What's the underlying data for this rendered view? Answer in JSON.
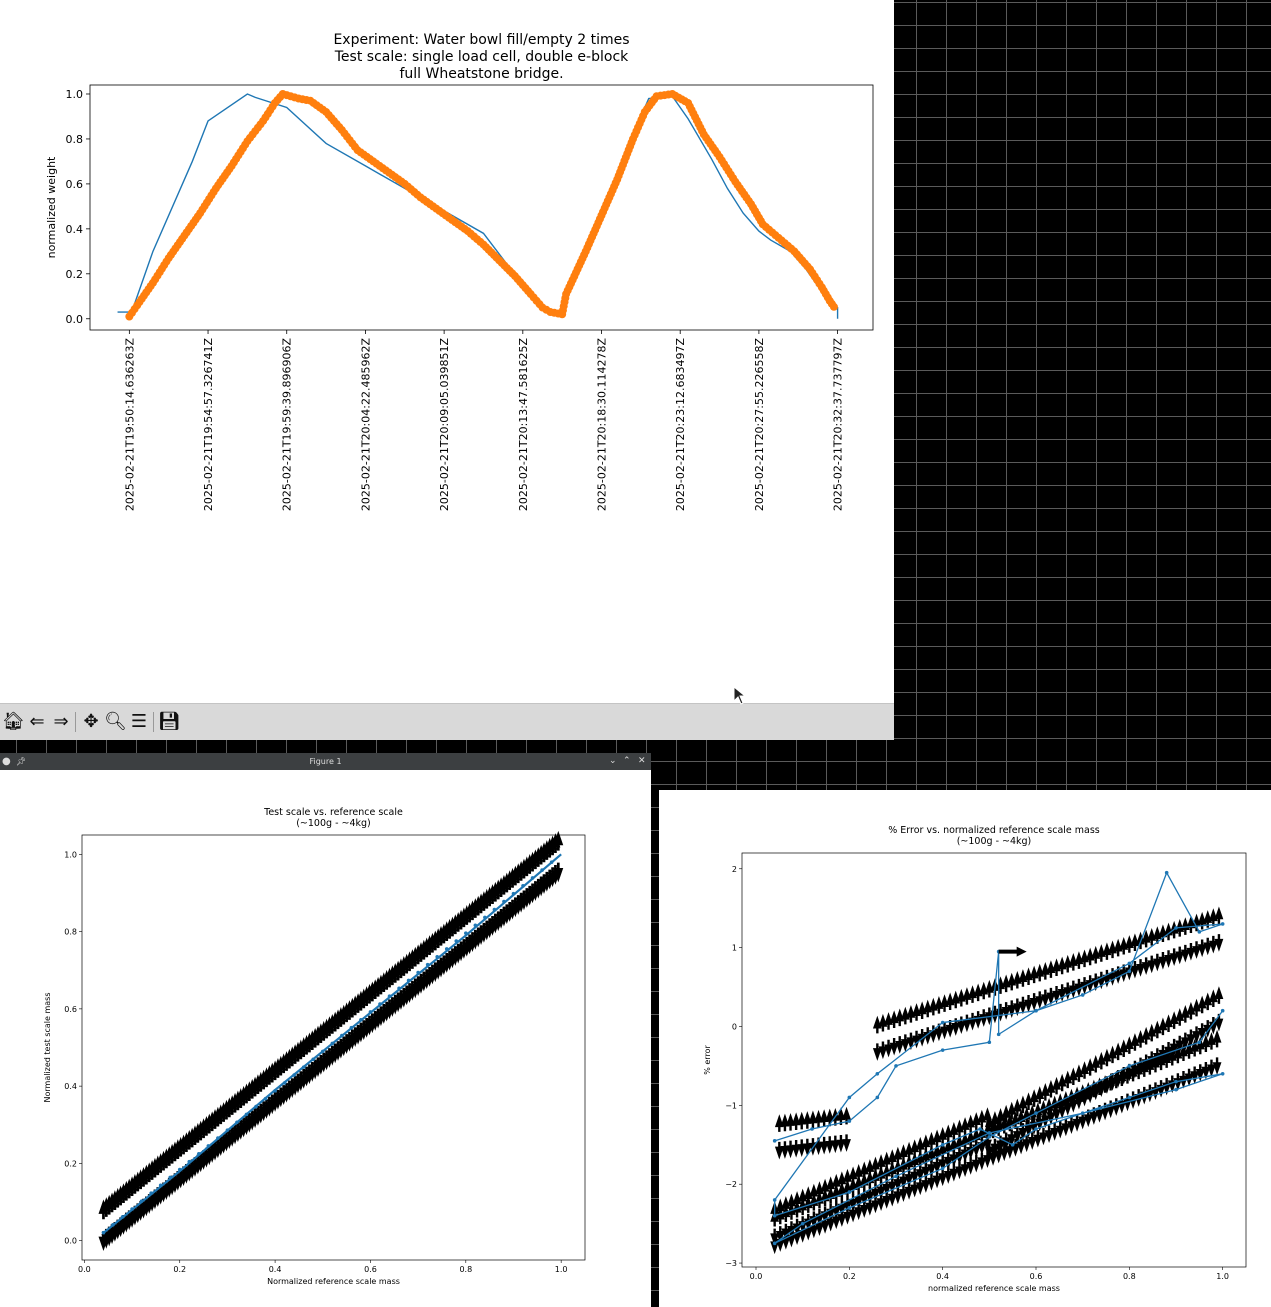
{
  "colors": {
    "accent": "#1f77b4",
    "orange": "#ff7f0e",
    "desktop": "#000000"
  },
  "window_top": {
    "toolbar": {
      "icons": [
        "home-icon",
        "back-arrow-icon",
        "forward-arrow-icon",
        "pan-icon",
        "zoom-icon",
        "configure-subplots-icon",
        "save-icon"
      ]
    }
  },
  "window_left": {
    "title": "Figure 1",
    "controls": {
      "minimize": "⌄",
      "maximize": "⌃",
      "close": "✕"
    }
  },
  "chart_data": [
    {
      "type": "line",
      "title": "Experiment: Water bowl fill/empty 2 times\nTest scale: single load cell, double e-block\nfull Wheatstone bridge.",
      "title_lines": [
        "Experiment: Water bowl fill/empty 2 times",
        "Test scale: single load cell, double e-block",
        "full Wheatstone bridge."
      ],
      "xlabel": "",
      "ylabel": "normalized weight",
      "ylim": [
        -0.05,
        1.04
      ],
      "yticks": [
        "0.0",
        "0.2",
        "0.4",
        "0.6",
        "0.8",
        "1.0"
      ],
      "x_tick_labels": [
        "2025-02-21T19:50:14.636263Z",
        "2025-02-21T19:54:57.326741Z",
        "2025-02-21T19:59:39.896906Z",
        "2025-02-21T20:04:22.485962Z",
        "2025-02-21T20:09:05.039851Z",
        "2025-02-21T20:13:47.581625Z",
        "2025-02-21T20:18:30.114278Z",
        "2025-02-21T20:23:12.683497Z",
        "2025-02-21T20:27:55.226558Z",
        "2025-02-21T20:32:37.737797Z"
      ],
      "series": [
        {
          "color": "#1f77b4",
          "style": "line",
          "points": [
            [
              -0.15,
              0.03
            ],
            [
              0.0,
              0.03
            ],
            [
              0.05,
              0.05
            ],
            [
              0.3,
              0.3
            ],
            [
              0.8,
              0.7
            ],
            [
              1.0,
              0.88
            ],
            [
              1.5,
              1.0
            ],
            [
              1.6,
              0.985
            ],
            [
              2.0,
              0.94
            ],
            [
              2.5,
              0.78
            ],
            [
              3.0,
              0.68
            ],
            [
              3.5,
              0.58
            ],
            [
              4.0,
              0.48
            ],
            [
              4.5,
              0.38
            ],
            [
              5.0,
              0.15
            ],
            [
              5.2,
              0.06
            ],
            [
              5.35,
              0.04
            ],
            [
              5.5,
              0.03
            ],
            [
              5.55,
              0.11
            ],
            [
              5.8,
              0.3
            ],
            [
              6.2,
              0.65
            ],
            [
              6.5,
              0.9
            ],
            [
              6.6,
              0.98
            ],
            [
              6.9,
              0.99
            ],
            [
              7.1,
              0.89
            ],
            [
              7.4,
              0.71
            ],
            [
              7.6,
              0.58
            ],
            [
              7.8,
              0.47
            ],
            [
              8.0,
              0.39
            ],
            [
              8.15,
              0.35
            ],
            [
              8.4,
              0.3
            ],
            [
              8.6,
              0.22
            ],
            [
              8.8,
              0.12
            ],
            [
              8.95,
              0.06
            ],
            [
              9.0,
              0.05
            ],
            [
              9.0,
              0.0
            ]
          ]
        },
        {
          "color": "#ff7f0e",
          "style": "markers",
          "points": [
            [
              0.0,
              0.01
            ],
            [
              0.1,
              0.06
            ],
            [
              0.3,
              0.16
            ],
            [
              0.5,
              0.27
            ],
            [
              0.7,
              0.37
            ],
            [
              0.9,
              0.47
            ],
            [
              1.1,
              0.58
            ],
            [
              1.3,
              0.68
            ],
            [
              1.5,
              0.79
            ],
            [
              1.7,
              0.88
            ],
            [
              1.85,
              0.96
            ],
            [
              1.95,
              1.0
            ],
            [
              2.15,
              0.98
            ],
            [
              2.3,
              0.97
            ],
            [
              2.5,
              0.92
            ],
            [
              2.7,
              0.84
            ],
            [
              2.9,
              0.75
            ],
            [
              3.1,
              0.7
            ],
            [
              3.3,
              0.65
            ],
            [
              3.5,
              0.6
            ],
            [
              3.7,
              0.54
            ],
            [
              3.9,
              0.49
            ],
            [
              4.1,
              0.44
            ],
            [
              4.3,
              0.39
            ],
            [
              4.5,
              0.33
            ],
            [
              4.7,
              0.26
            ],
            [
              4.9,
              0.19
            ],
            [
              5.1,
              0.11
            ],
            [
              5.25,
              0.05
            ],
            [
              5.35,
              0.03
            ],
            [
              5.5,
              0.02
            ],
            [
              5.55,
              0.11
            ],
            [
              5.8,
              0.3
            ],
            [
              6.0,
              0.46
            ],
            [
              6.2,
              0.62
            ],
            [
              6.4,
              0.8
            ],
            [
              6.55,
              0.92
            ],
            [
              6.7,
              0.99
            ],
            [
              6.9,
              1.0
            ],
            [
              7.1,
              0.96
            ],
            [
              7.3,
              0.82
            ],
            [
              7.5,
              0.72
            ],
            [
              7.7,
              0.61
            ],
            [
              7.9,
              0.51
            ],
            [
              8.05,
              0.42
            ],
            [
              8.25,
              0.36
            ],
            [
              8.45,
              0.3
            ],
            [
              8.65,
              0.22
            ],
            [
              8.8,
              0.14
            ],
            [
              8.9,
              0.08
            ],
            [
              8.98,
              0.04
            ]
          ]
        }
      ]
    },
    {
      "type": "line",
      "title": "Test scale vs. reference scale\n(~100g - ~4kg)",
      "title_lines": [
        "Test scale vs. reference scale",
        "(~100g - ~4kg)"
      ],
      "xlabel": "Normalized reference scale mass",
      "ylabel": "Normalized test scale mass",
      "xlim": [
        -0.005,
        1.05
      ],
      "ylim": [
        -0.05,
        1.05
      ],
      "xticks": [
        "0.0",
        "0.2",
        "0.4",
        "0.6",
        "0.8",
        "1.0"
      ],
      "yticks": [
        "0.0",
        "0.2",
        "0.4",
        "0.6",
        "0.8",
        "1.0"
      ],
      "series": [
        {
          "color": "#1f77b4",
          "style": "line+markers",
          "points": [
            [
              0.04,
              0.02
            ],
            [
              0.2,
              0.18
            ],
            [
              0.4,
              0.39
            ],
            [
              0.6,
              0.59
            ],
            [
              0.8,
              0.79
            ],
            [
              1.0,
              1.0
            ]
          ]
        }
      ]
    },
    {
      "type": "line",
      "title": "% Error vs. normalized reference scale mass\n(~100g - ~4kg)",
      "title_lines": [
        "% Error vs. normalized reference scale mass",
        "(~100g - ~4kg)"
      ],
      "xlabel": "normalized reference scale mass",
      "ylabel": "% error",
      "xlim": [
        -0.03,
        1.05
      ],
      "ylim": [
        -3.05,
        2.2
      ],
      "xticks": [
        "0.0",
        "0.2",
        "0.4",
        "0.6",
        "0.8",
        "1.0"
      ],
      "yticks": [
        "−3",
        "−2",
        "−1",
        "0",
        "1",
        "2"
      ],
      "series": [
        {
          "color": "#1f77b4",
          "style": "line+markers",
          "points": [
            [
              0.04,
              -1.45
            ],
            [
              0.12,
              -1.3
            ],
            [
              0.2,
              -1.2
            ],
            [
              0.26,
              -0.9
            ],
            [
              0.3,
              -0.5
            ],
            [
              0.4,
              -0.3
            ],
            [
              0.5,
              -0.2
            ],
            [
              0.52,
              0.95
            ],
            [
              0.52,
              -0.1
            ],
            [
              0.6,
              0.2
            ],
            [
              0.7,
              0.4
            ],
            [
              0.8,
              0.7
            ],
            [
              0.88,
              1.95
            ],
            [
              0.95,
              1.2
            ],
            [
              1.0,
              1.3
            ],
            [
              0.9,
              1.25
            ],
            [
              0.8,
              0.8
            ],
            [
              0.6,
              0.2
            ],
            [
              0.4,
              0.05
            ],
            [
              0.26,
              -0.6
            ],
            [
              0.2,
              -0.9
            ],
            [
              0.04,
              -2.2
            ],
            [
              0.04,
              -2.4
            ],
            [
              0.2,
              -2.1
            ],
            [
              0.4,
              -1.5
            ],
            [
              0.48,
              -1.3
            ],
            [
              0.55,
              -1.5
            ],
            [
              0.6,
              -1.3
            ],
            [
              0.8,
              -0.9
            ],
            [
              0.9,
              -0.7
            ],
            [
              1.0,
              -0.6
            ],
            [
              0.9,
              -0.8
            ],
            [
              0.7,
              -1.1
            ],
            [
              0.5,
              -1.35
            ],
            [
              0.3,
              -1.9
            ],
            [
              0.1,
              -2.5
            ],
            [
              0.04,
              -2.75
            ],
            [
              0.2,
              -2.3
            ],
            [
              0.4,
              -1.8
            ],
            [
              0.5,
              -1.4
            ],
            [
              0.6,
              -1.1
            ],
            [
              0.8,
              -0.5
            ],
            [
              0.95,
              -0.2
            ],
            [
              1.0,
              0.2
            ]
          ]
        }
      ]
    }
  ]
}
